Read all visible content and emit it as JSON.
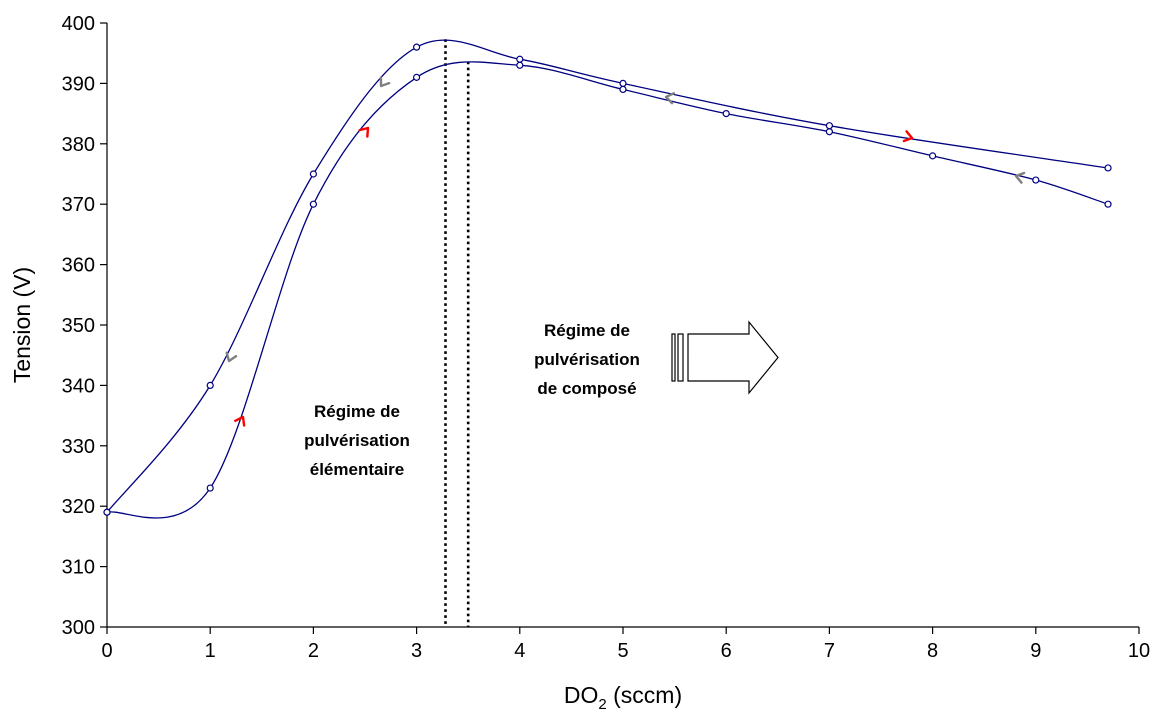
{
  "chart_data": {
    "type": "scatter",
    "title": "",
    "ylabel": "Tension (V)",
    "xlabel": {
      "main": "DO",
      "subscript": "2",
      "unit": " (sccm)"
    },
    "xlim": [
      0,
      10
    ],
    "ylim": [
      300,
      400
    ],
    "x_ticks": [
      "0",
      "1",
      "2",
      "3",
      "4",
      "5",
      "6",
      "7",
      "8",
      "9",
      "10"
    ],
    "y_ticks": [
      "300",
      "310",
      "320",
      "330",
      "340",
      "350",
      "360",
      "370",
      "380",
      "390",
      "400"
    ],
    "grid": false,
    "legend": "none",
    "line_color": "#000080",
    "series": [
      {
        "direction": "increasing",
        "points": [
          [
            0,
            319
          ],
          [
            1,
            323
          ],
          [
            2,
            370
          ],
          [
            3,
            391
          ],
          [
            4,
            393
          ],
          [
            5,
            389
          ],
          [
            6,
            385
          ],
          [
            7,
            382
          ],
          [
            8,
            378
          ],
          [
            9,
            374
          ],
          [
            9.7,
            370
          ]
        ]
      },
      {
        "direction": "decreasing",
        "points": [
          [
            9.7,
            376
          ],
          [
            7,
            383
          ],
          [
            5,
            390
          ],
          [
            4,
            394
          ],
          [
            3,
            396
          ],
          [
            2,
            375
          ],
          [
            1,
            340
          ],
          [
            0,
            319
          ]
        ]
      }
    ],
    "thresholds": [
      3.28,
      3.5
    ],
    "direction_markers": {
      "increasing_color": "#ff0000",
      "decreasing_color": "#808080"
    },
    "annotations": {
      "elementaire": [
        "Régime de",
        "pulvérisation",
        "élémentaire"
      ],
      "compose": [
        "Régime de",
        "pulvérisation",
        "de composé"
      ]
    }
  }
}
